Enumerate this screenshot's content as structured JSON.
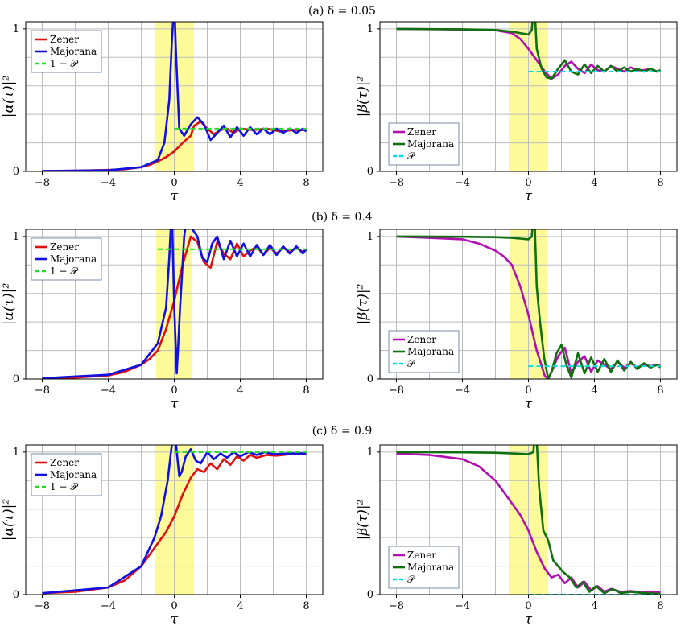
{
  "figure_labels": {
    "row_a": "(a) δ = 0.05",
    "row_b": "(b) δ = 0.4",
    "row_c": "(c) δ = 0.9"
  },
  "colors": {
    "zener_left": "#e01010",
    "zener_right": "#b010b0",
    "majorana_left": "#1010e0",
    "majorana_right": "#107010",
    "probability_left": "#22dd22",
    "probability_right": "#00e0e0",
    "highlight": "#fdfa9a",
    "grid": "#bdbdbd"
  },
  "chart_data": [
    {
      "id": "a-left",
      "type": "line",
      "delta": 0.05,
      "xlabel": "τ",
      "ylabel": "|α(τ)|²",
      "xlim": [
        -9,
        9
      ],
      "ylim": [
        0,
        1.05
      ],
      "x_ticks": [
        -8,
        -4,
        0,
        4,
        8
      ],
      "x_tick_labels": [
        "−8",
        "−4",
        "0",
        "4",
        "8"
      ],
      "y_ticks": [
        0,
        1
      ],
      "y_tick_labels": [
        "0",
        "1"
      ],
      "grid": true,
      "highlight_band": [
        -1.2,
        1.2
      ],
      "legend_position": "top-left",
      "series": [
        {
          "name": "Zener",
          "role": "zener",
          "x": [
            -8,
            -6,
            -4,
            -3,
            -2,
            -1.5,
            -1,
            -0.5,
            0,
            0.5,
            1,
            1.2,
            1.6,
            2,
            2.4,
            2.8,
            3.2,
            3.6,
            4,
            4.8,
            5.6,
            6.4,
            7.2,
            8
          ],
          "values": [
            0.003,
            0.005,
            0.01,
            0.015,
            0.03,
            0.045,
            0.07,
            0.1,
            0.14,
            0.2,
            0.25,
            0.32,
            0.35,
            0.3,
            0.26,
            0.29,
            0.3,
            0.27,
            0.3,
            0.29,
            0.3,
            0.28,
            0.29,
            0.29
          ]
        },
        {
          "name": "Majorana",
          "role": "majorana",
          "x": [
            -8,
            -4,
            -2,
            -1,
            -0.6,
            -0.3,
            -0.15,
            0,
            0.1,
            0.3,
            0.6,
            1,
            1.4,
            1.8,
            2.2,
            2.6,
            3,
            3.4,
            3.8,
            4.2,
            4.6,
            5,
            5.4,
            5.8,
            6.2,
            6.6,
            7,
            7.4,
            7.8,
            8
          ],
          "values": [
            0.003,
            0.008,
            0.03,
            0.08,
            0.2,
            0.5,
            0.9,
            1.2,
            0.85,
            0.3,
            0.25,
            0.33,
            0.38,
            0.33,
            0.22,
            0.27,
            0.32,
            0.24,
            0.31,
            0.25,
            0.31,
            0.26,
            0.3,
            0.26,
            0.3,
            0.27,
            0.3,
            0.27,
            0.3,
            0.28
          ]
        },
        {
          "name": "1 − 𝒫",
          "role": "probability",
          "x": [
            0,
            8
          ],
          "values": [
            0.3,
            0.3
          ]
        }
      ]
    },
    {
      "id": "a-right",
      "type": "line",
      "delta": 0.05,
      "xlabel": "τ",
      "ylabel": "|β(τ)|²",
      "xlim": [
        -9,
        9
      ],
      "ylim": [
        0,
        1.05
      ],
      "x_ticks": [
        -8,
        -4,
        0,
        4,
        8
      ],
      "x_tick_labels": [
        "−8",
        "−4",
        "0",
        "4",
        "8"
      ],
      "y_ticks": [
        0,
        1
      ],
      "y_tick_labels": [
        "0",
        "1"
      ],
      "grid": true,
      "highlight_band": [
        -1.2,
        1.2
      ],
      "legend_position": "bottom-left",
      "series": [
        {
          "name": "Zener",
          "role": "zener",
          "x": [
            -8,
            -4,
            -2,
            -1,
            -0.5,
            0,
            0.5,
            1,
            1.4,
            1.8,
            2.2,
            2.6,
            3,
            3.4,
            3.8,
            4.2,
            4.6,
            5,
            5.4,
            5.8,
            6.2,
            6.6,
            7,
            7.4,
            7.8,
            8
          ],
          "values": [
            1,
            0.995,
            0.99,
            0.97,
            0.93,
            0.86,
            0.78,
            0.7,
            0.65,
            0.68,
            0.74,
            0.77,
            0.72,
            0.69,
            0.75,
            0.71,
            0.7,
            0.74,
            0.72,
            0.7,
            0.73,
            0.71,
            0.71,
            0.72,
            0.7,
            0.71
          ]
        },
        {
          "name": "Majorana",
          "role": "majorana",
          "x": [
            -8,
            -4,
            -2,
            -1,
            -0.5,
            0,
            0.2,
            0.35,
            0.5,
            0.8,
            1.1,
            1.4,
            1.8,
            2.2,
            2.6,
            3,
            3.4,
            3.8,
            4.2,
            4.6,
            5,
            5.4,
            5.8,
            6.2,
            6.6,
            7,
            7.4,
            7.8,
            8
          ],
          "values": [
            1,
            0.997,
            0.992,
            0.98,
            0.97,
            0.96,
            0.99,
            1.2,
            0.86,
            0.72,
            0.66,
            0.65,
            0.72,
            0.78,
            0.7,
            0.68,
            0.75,
            0.69,
            0.74,
            0.7,
            0.74,
            0.7,
            0.73,
            0.7,
            0.72,
            0.7,
            0.72,
            0.7,
            0.71
          ]
        },
        {
          "name": "𝒫",
          "role": "probability",
          "x": [
            0,
            8
          ],
          "values": [
            0.7,
            0.7
          ]
        }
      ]
    },
    {
      "id": "b-left",
      "type": "line",
      "delta": 0.4,
      "xlabel": "τ",
      "ylabel": "|α(τ)|²",
      "xlim": [
        -9,
        9
      ],
      "ylim": [
        0,
        1.05
      ],
      "x_ticks": [
        -8,
        -4,
        0,
        4,
        8
      ],
      "x_tick_labels": [
        "−8",
        "−4",
        "0",
        "4",
        "8"
      ],
      "y_ticks": [
        0,
        1
      ],
      "y_tick_labels": [
        "0",
        "1"
      ],
      "grid": true,
      "highlight_band": [
        -1.1,
        1.1
      ],
      "legend_position": "top-left",
      "series": [
        {
          "name": "Zener",
          "role": "zener",
          "x": [
            -8,
            -6,
            -4,
            -3,
            -2,
            -1.5,
            -1,
            -0.5,
            0,
            0.5,
            1,
            1.4,
            1.8,
            2.2,
            2.6,
            3,
            3.4,
            3.8,
            4.2,
            4.6,
            5,
            5.4,
            5.8,
            6.2,
            6.6,
            7,
            7.4,
            7.8,
            8
          ],
          "values": [
            0.005,
            0.01,
            0.025,
            0.05,
            0.1,
            0.14,
            0.2,
            0.35,
            0.55,
            0.8,
            1,
            0.96,
            0.82,
            0.78,
            0.96,
            0.88,
            0.84,
            0.95,
            0.86,
            0.9,
            0.93,
            0.87,
            0.92,
            0.88,
            0.92,
            0.89,
            0.92,
            0.89,
            0.91
          ]
        },
        {
          "name": "Majorana",
          "role": "majorana",
          "x": [
            -8,
            -4,
            -2,
            -1,
            -0.5,
            -0.3,
            -0.15,
            0,
            0.15,
            0.35,
            0.6,
            0.85,
            1.1,
            1.4,
            1.7,
            2,
            2.3,
            2.6,
            3,
            3.4,
            3.8,
            4.2,
            4.6,
            5,
            5.4,
            5.8,
            6.2,
            6.6,
            7,
            7.4,
            7.8,
            8
          ],
          "values": [
            0.005,
            0.03,
            0.1,
            0.25,
            0.5,
            0.85,
            1.2,
            0.5,
            0.04,
            0.5,
            1.0,
            1.2,
            1.05,
            1.0,
            0.85,
            0.82,
            0.95,
            1.0,
            0.84,
            0.97,
            0.86,
            0.95,
            0.86,
            0.94,
            0.87,
            0.94,
            0.87,
            0.93,
            0.88,
            0.93,
            0.88,
            0.91
          ]
        },
        {
          "name": "1 − 𝒫",
          "role": "probability",
          "x": [
            -1,
            8
          ],
          "values": [
            0.91,
            0.91
          ]
        }
      ]
    },
    {
      "id": "b-right",
      "type": "line",
      "delta": 0.4,
      "xlabel": "τ",
      "ylabel": "|β(τ)|²",
      "xlim": [
        -9,
        9
      ],
      "ylim": [
        0,
        1.05
      ],
      "x_ticks": [
        -8,
        -4,
        0,
        4,
        8
      ],
      "x_tick_labels": [
        "−8",
        "−4",
        "0",
        "4",
        "8"
      ],
      "y_ticks": [
        0,
        1
      ],
      "y_tick_labels": [
        "0",
        "1"
      ],
      "grid": true,
      "highlight_band": [
        -1.1,
        1.1
      ],
      "legend_position": "bottom-left",
      "series": [
        {
          "name": "Zener",
          "role": "zener",
          "x": [
            -8,
            -6,
            -4,
            -3,
            -2,
            -1.5,
            -1,
            -0.5,
            0,
            0.5,
            1,
            1.2,
            1.4,
            1.8,
            2.2,
            2.6,
            3,
            3.4,
            3.8,
            4.2,
            4.6,
            5,
            5.4,
            5.8,
            6.2,
            6.6,
            7,
            7.4,
            7.8,
            8
          ],
          "values": [
            1,
            0.99,
            0.98,
            0.95,
            0.9,
            0.86,
            0.8,
            0.65,
            0.45,
            0.2,
            0.02,
            0.0,
            0.05,
            0.16,
            0.22,
            0.04,
            0.12,
            0.16,
            0.05,
            0.13,
            0.1,
            0.07,
            0.12,
            0.08,
            0.11,
            0.08,
            0.1,
            0.09,
            0.1,
            0.09
          ]
        },
        {
          "name": "Majorana",
          "role": "majorana",
          "x": [
            -8,
            -4,
            -2,
            -1,
            -0.5,
            0,
            0.2,
            0.35,
            0.5,
            0.7,
            0.95,
            1.2,
            1.4,
            1.7,
            2,
            2.3,
            2.6,
            3,
            3.4,
            3.8,
            4.2,
            4.6,
            5,
            5.4,
            5.8,
            6.2,
            6.6,
            7,
            7.4,
            7.8,
            8
          ],
          "values": [
            1,
            0.998,
            0.995,
            0.99,
            0.985,
            0.98,
            1.0,
            1.2,
            0.65,
            0.4,
            0.15,
            0.0,
            0.05,
            0.18,
            0.24,
            0.1,
            0.01,
            0.18,
            0.04,
            0.15,
            0.05,
            0.14,
            0.05,
            0.13,
            0.06,
            0.12,
            0.07,
            0.11,
            0.08,
            0.1,
            0.08
          ]
        },
        {
          "name": "𝒫",
          "role": "probability",
          "x": [
            0,
            8
          ],
          "values": [
            0.09,
            0.09
          ]
        }
      ]
    },
    {
      "id": "c-left",
      "type": "line",
      "delta": 0.9,
      "xlabel": "τ",
      "ylabel": "|α(τ)|²",
      "xlim": [
        -9,
        9
      ],
      "ylim": [
        0,
        1.05
      ],
      "x_ticks": [
        -8,
        -4,
        0,
        4,
        8
      ],
      "x_tick_labels": [
        "−8",
        "−4",
        "0",
        "4",
        "8"
      ],
      "y_ticks": [
        0,
        1
      ],
      "y_tick_labels": [
        "0",
        "1"
      ],
      "grid": true,
      "highlight_band": [
        -1.2,
        1.2
      ],
      "legend_position": "top-left",
      "series": [
        {
          "name": "Zener",
          "role": "zener",
          "x": [
            -8,
            -6,
            -4,
            -3,
            -2,
            -1.5,
            -1,
            -0.5,
            0,
            0.5,
            1,
            1.4,
            1.8,
            2.2,
            2.6,
            3,
            3.4,
            3.8,
            4.2,
            4.6,
            5,
            5.6,
            6.2,
            7,
            8
          ],
          "values": [
            0.01,
            0.02,
            0.05,
            0.1,
            0.2,
            0.28,
            0.36,
            0.44,
            0.55,
            0.7,
            0.82,
            0.88,
            0.86,
            0.92,
            0.88,
            0.95,
            0.91,
            0.97,
            0.94,
            0.98,
            0.96,
            0.98,
            0.975,
            0.985,
            0.985
          ]
        },
        {
          "name": "Majorana",
          "role": "majorana",
          "x": [
            -8,
            -4,
            -2,
            -1.2,
            -0.8,
            -0.4,
            -0.2,
            0,
            0.15,
            0.3,
            0.45,
            0.7,
            1,
            1.3,
            1.6,
            2,
            2.4,
            2.8,
            3.2,
            3.6,
            4,
            4.5,
            5,
            5.5,
            6,
            7,
            8
          ],
          "values": [
            0.01,
            0.05,
            0.2,
            0.4,
            0.55,
            0.8,
            1.0,
            1.2,
            1.0,
            0.83,
            0.86,
            0.97,
            1.02,
            0.94,
            0.92,
            1.0,
            0.95,
            0.99,
            0.96,
            1.0,
            0.97,
            1.0,
            0.98,
            1.0,
            0.985,
            0.99,
            0.99
          ]
        },
        {
          "name": "1 − 𝒫",
          "role": "probability",
          "x": [
            0,
            8
          ],
          "values": [
            1.0,
            1.0
          ]
        }
      ]
    },
    {
      "id": "c-right",
      "type": "line",
      "delta": 0.9,
      "xlabel": "τ",
      "ylabel": "|β(τ)|²",
      "xlim": [
        -9,
        9
      ],
      "ylim": [
        0,
        1.05
      ],
      "x_ticks": [
        -8,
        -4,
        0,
        4,
        8
      ],
      "x_tick_labels": [
        "−8",
        "−4",
        "0",
        "4",
        "8"
      ],
      "y_ticks": [
        0,
        1
      ],
      "y_tick_labels": [
        "0",
        "1"
      ],
      "grid": true,
      "highlight_band": [
        -1.2,
        1.2
      ],
      "legend_position": "bottom-left",
      "series": [
        {
          "name": "Zener",
          "role": "zener",
          "x": [
            -8,
            -6,
            -4,
            -3,
            -2,
            -1.5,
            -1,
            -0.5,
            0,
            0.5,
            1,
            1.4,
            1.8,
            2.2,
            2.6,
            3,
            3.4,
            3.8,
            4.2,
            4.6,
            5,
            5.6,
            6.2,
            7,
            8
          ],
          "values": [
            0.99,
            0.98,
            0.95,
            0.9,
            0.8,
            0.72,
            0.64,
            0.56,
            0.45,
            0.3,
            0.18,
            0.12,
            0.14,
            0.08,
            0.12,
            0.05,
            0.09,
            0.03,
            0.06,
            0.02,
            0.04,
            0.02,
            0.025,
            0.015,
            0.015
          ]
        },
        {
          "name": "Majorana",
          "role": "majorana",
          "x": [
            -8,
            -4,
            -2,
            -1,
            0,
            0.3,
            0.45,
            0.65,
            0.9,
            1.2,
            1.5,
            1.8,
            2.1,
            2.5,
            2.9,
            3.3,
            3.7,
            4.1,
            4.6,
            5.1,
            5.6,
            6.2,
            7,
            8
          ],
          "values": [
            1,
            0.998,
            0.995,
            0.99,
            0.985,
            1.0,
            1.2,
            0.75,
            0.45,
            0.38,
            0.24,
            0.2,
            0.16,
            0.12,
            0.05,
            0.09,
            0.02,
            0.06,
            0.01,
            0.04,
            0.01,
            0.02,
            0.01,
            0.005
          ]
        },
        {
          "name": "𝒫",
          "role": "probability",
          "x": [
            0,
            8
          ],
          "values": [
            0.0,
            0.0
          ]
        }
      ]
    }
  ]
}
